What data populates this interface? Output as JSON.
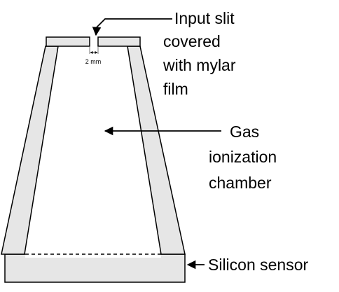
{
  "labels": {
    "slit_width": "2 mm",
    "input_slit": [
      "Input slit",
      "covered",
      "with mylar",
      "film"
    ],
    "chamber": [
      "Gas",
      "ionization",
      "chamber"
    ],
    "sensor": "Silicon sensor"
  },
  "colors": {
    "wall_fill": "#e6e6e6",
    "sensor_fill": "#e6e6e6",
    "outline": "#000000",
    "background": "#ffffff"
  },
  "icons": [
    "arrow-icon",
    "dimension-arrow-icon"
  ]
}
